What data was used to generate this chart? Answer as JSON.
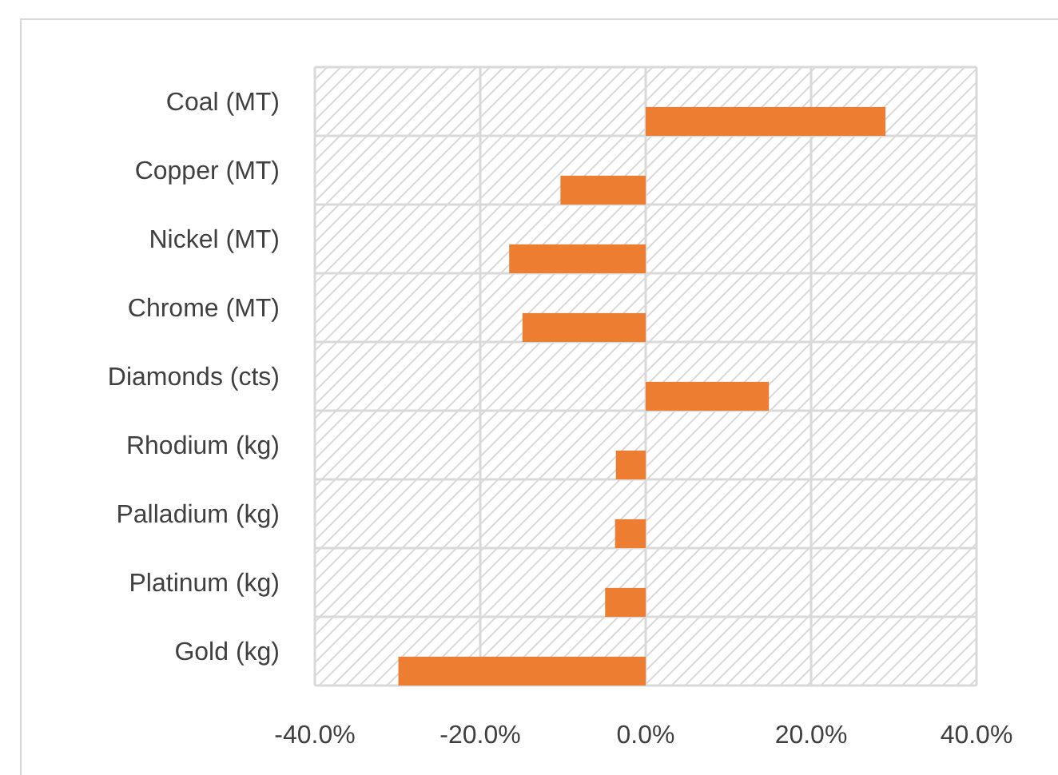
{
  "chart_data": {
    "type": "bar",
    "orientation": "horizontal",
    "categories": [
      "Coal (MT)",
      "Copper (MT)",
      "Nickel (MT)",
      "Chrome (MT)",
      "Diamonds (cts)",
      "Rhodium (kg)",
      "Palladium (kg)",
      "Platinum (kg)",
      "Gold (kg)"
    ],
    "values": [
      29.0,
      -10.3,
      -16.5,
      -14.9,
      14.9,
      -3.6,
      -3.7,
      -4.9,
      -29.9
    ],
    "color": "#ed7d31",
    "xlim": [
      -40,
      40
    ],
    "xticks": [
      {
        "value": -40,
        "label": "-40.0%"
      },
      {
        "value": -20,
        "label": "-20.0%"
      },
      {
        "value": 0,
        "label": "0.0%"
      },
      {
        "value": 20,
        "label": "20.0%"
      },
      {
        "value": 40,
        "label": "40.0%"
      }
    ],
    "grid": true
  }
}
